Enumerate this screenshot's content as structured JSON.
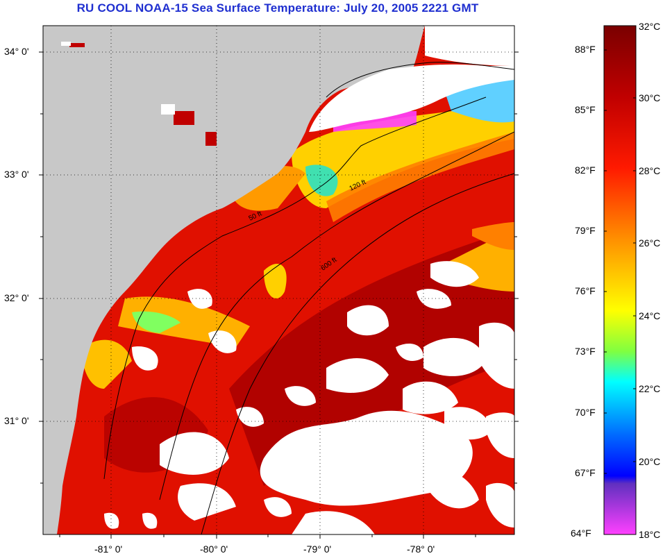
{
  "title": "RU COOL  NOAA-15  Sea Surface Temperature:  July 20, 2005 2221 GMT",
  "map": {
    "lat_labels": [
      "34° 0'",
      "33° 0'",
      "32° 0'",
      "31° 0'"
    ],
    "lon_labels": [
      "-81° 0'",
      "-80° 0'",
      "-79° 0'",
      "-78° 0'"
    ],
    "isobath_labels": [
      "50 ft",
      "120 ft",
      "600 ft"
    ],
    "land_color": "#c8c8c8",
    "cloud_color": "#ffffff"
  },
  "colorbar": {
    "fahrenheit_labels": [
      "88°F",
      "85°F",
      "82°F",
      "79°F",
      "76°F",
      "73°F",
      "70°F",
      "67°F",
      "64°F"
    ],
    "celsius_labels": [
      "32°C",
      "30°C",
      "28°C",
      "26°C",
      "24°C",
      "22°C",
      "20°C",
      "18°C"
    ],
    "colors": [
      "#7a0000",
      "#c00000",
      "#ff0000",
      "#ff6000",
      "#ffb000",
      "#ffff00",
      "#80ff40",
      "#00ffff",
      "#0080ff",
      "#0000ff",
      "#8040c0",
      "#ff40ff"
    ]
  }
}
